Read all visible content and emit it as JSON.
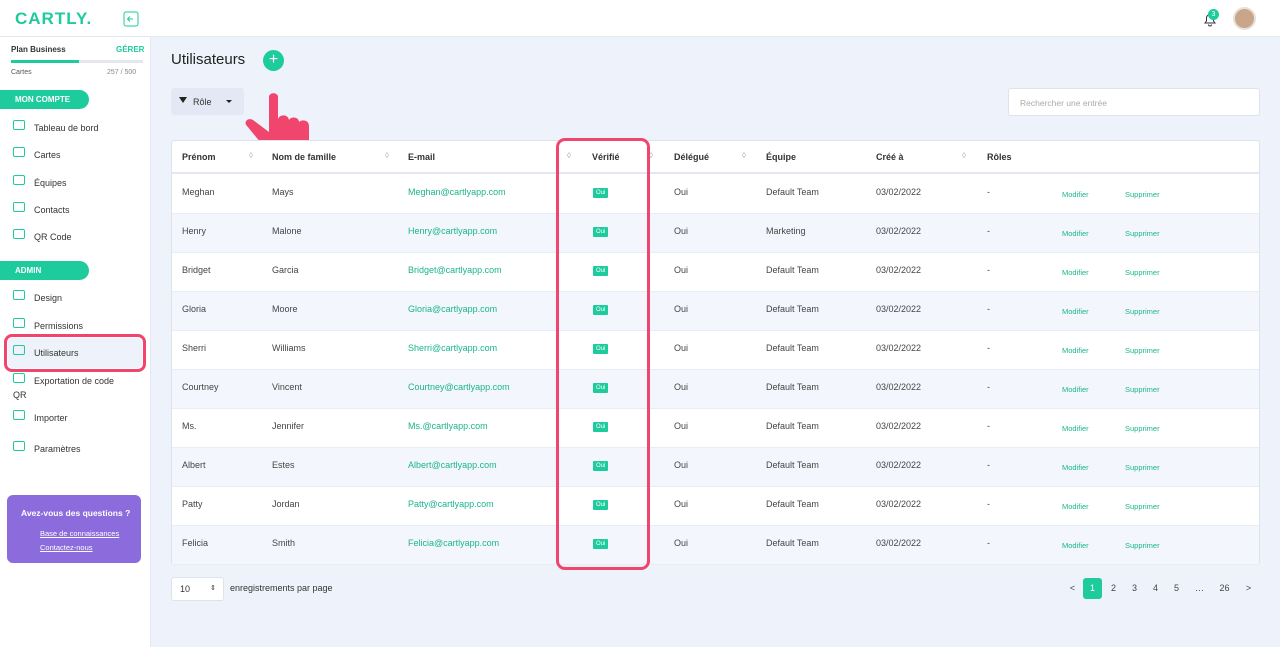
{
  "header": {
    "logo": "CARTLY.",
    "notifications": "3"
  },
  "sidebar": {
    "plan": "Plan Business",
    "manage": "GÉRER",
    "usage_label": "Cartes",
    "usage": "257 / 500",
    "sections": [
      {
        "title": "MON COMPTE",
        "items": [
          "Tableau de bord",
          "Cartes",
          "Équipes",
          "Contacts",
          "QR Code"
        ]
      },
      {
        "title": "ADMIN",
        "items": [
          "Design",
          "Permissions",
          "Utilisateurs",
          "Exportation de code QR",
          "Importer",
          "Paramètres"
        ]
      }
    ],
    "help": {
      "title": "Avez-vous des questions ?",
      "links": [
        "Base de connaissances",
        "Contactez-nous"
      ]
    }
  },
  "page": {
    "title": "Utilisateurs",
    "filter": "Rôle",
    "search_placeholder": "Rechercher une entrée"
  },
  "table": {
    "columns": [
      "Prénom",
      "Nom de famille",
      "E-mail",
      "Vérifié",
      "Délégué",
      "Équipe",
      "Créé à",
      "Rôles"
    ],
    "rows": [
      [
        "Meghan",
        "Mays",
        "Meghan@cartlyapp.com",
        "Oui",
        "Oui",
        "Default Team",
        "03/02/2022",
        "-"
      ],
      [
        "Henry",
        "Malone",
        "Henry@cartlyapp.com",
        "Oui",
        "Oui",
        "Marketing",
        "03/02/2022",
        "-"
      ],
      [
        "Bridget",
        "Garcia",
        "Bridget@cartlyapp.com",
        "Oui",
        "Oui",
        "Default Team",
        "03/02/2022",
        "-"
      ],
      [
        "Gloria",
        "Moore",
        "Gloria@cartlyapp.com",
        "Oui",
        "Oui",
        "Default Team",
        "03/02/2022",
        "-"
      ],
      [
        "Sherri",
        "Williams",
        "Sherri@cartlyapp.com",
        "Oui",
        "Oui",
        "Default Team",
        "03/02/2022",
        "-"
      ],
      [
        "Courtney",
        "Vincent",
        "Courtney@cartlyapp.com",
        "Oui",
        "Oui",
        "Default Team",
        "03/02/2022",
        "-"
      ],
      [
        "Ms.",
        "Jennifer",
        "Ms.@cartlyapp.com",
        "Oui",
        "Oui",
        "Default Team",
        "03/02/2022",
        "-"
      ],
      [
        "Albert",
        "Estes",
        "Albert@cartlyapp.com",
        "Oui",
        "Oui",
        "Default Team",
        "03/02/2022",
        "-"
      ],
      [
        "Patty",
        "Jordan",
        "Patty@cartlyapp.com",
        "Oui",
        "Oui",
        "Default Team",
        "03/02/2022",
        "-"
      ],
      [
        "Felicia",
        "Smith",
        "Felicia@cartlyapp.com",
        "Oui",
        "Oui",
        "Default Team",
        "03/02/2022",
        "-"
      ]
    ],
    "actions": [
      "Modifier",
      "Supprimer"
    ]
  },
  "pagination": {
    "page_size": "10",
    "page_size_label": "enregistrements par page",
    "pages": [
      "<",
      "1",
      "2",
      "3",
      "4",
      "5",
      "…",
      "26",
      ">"
    ]
  }
}
